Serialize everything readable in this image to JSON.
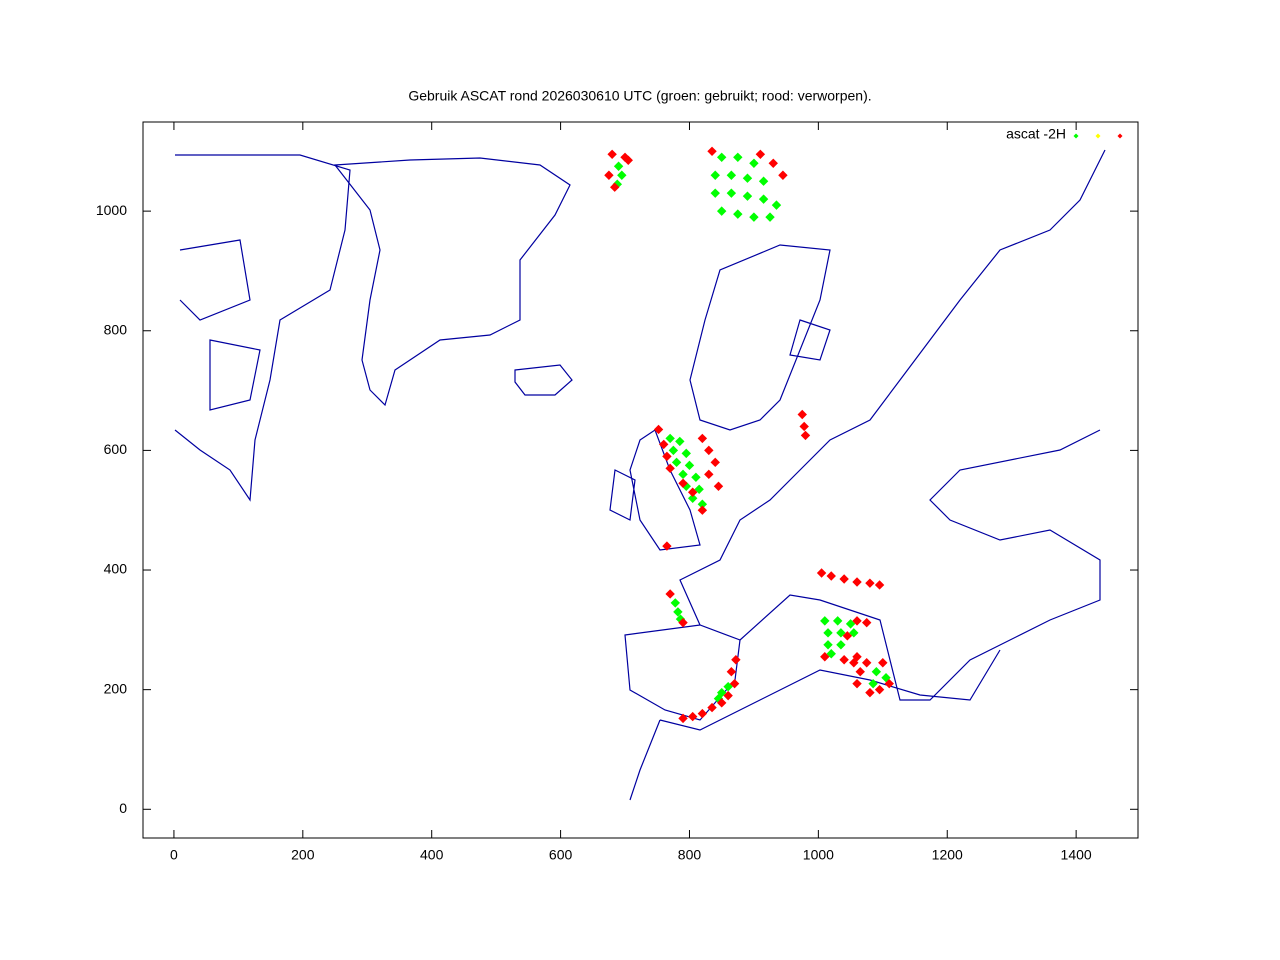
{
  "chart_data": {
    "type": "scatter",
    "title": "Gebruik ASCAT rond 2026030610 UTC (groen: gebruikt; rood: verworpen).",
    "legend_title": "ascat -2H",
    "legend": "top-right",
    "xlim": [
      -48,
      1496
    ],
    "ylim": [
      -48,
      1149
    ],
    "xticks": [
      0,
      200,
      400,
      600,
      800,
      1000,
      1200,
      1400
    ],
    "yticks": [
      0,
      200,
      400,
      600,
      800,
      1000
    ],
    "series": [
      {
        "color": "#00ff00",
        "x": [
          690,
          695,
          688,
          850,
          875,
          900,
          840,
          865,
          890,
          915,
          840,
          865,
          890,
          915,
          935,
          850,
          875,
          900,
          925,
          770,
          785,
          775,
          795,
          780,
          800,
          790,
          810,
          795,
          815,
          805,
          820,
          778,
          782,
          786,
          1010,
          1030,
          1050,
          1015,
          1035,
          1055,
          1015,
          1035,
          1020,
          1090,
          1105,
          1085,
          860,
          850,
          845
        ],
        "values": [
          1075,
          1060,
          1045,
          1090,
          1090,
          1080,
          1060,
          1060,
          1055,
          1050,
          1030,
          1030,
          1025,
          1020,
          1010,
          1000,
          995,
          990,
          990,
          620,
          615,
          600,
          595,
          580,
          575,
          560,
          555,
          540,
          535,
          520,
          510,
          345,
          330,
          318,
          315,
          315,
          310,
          295,
          295,
          295,
          275,
          275,
          260,
          230,
          220,
          210,
          205,
          195,
          185
        ]
      },
      {
        "color": "#ffff00",
        "x": [],
        "values": []
      },
      {
        "color": "#ff0000",
        "x": [
          680,
          700,
          675,
          684,
          705,
          910,
          930,
          945,
          835,
          752,
          760,
          765,
          770,
          790,
          805,
          820,
          830,
          840,
          845,
          830,
          820,
          770,
          790,
          1005,
          1020,
          1040,
          1060,
          1080,
          1095,
          1060,
          1075,
          1045,
          1010,
          1040,
          1060,
          1055,
          1065,
          1075,
          1060,
          1080,
          1100,
          1110,
          1095,
          790,
          805,
          820,
          835,
          850,
          860,
          870,
          865,
          872,
          975,
          978,
          980,
          765
        ],
        "values": [
          1095,
          1090,
          1060,
          1040,
          1085,
          1095,
          1080,
          1060,
          1100,
          635,
          610,
          590,
          570,
          545,
          530,
          500,
          560,
          580,
          540,
          600,
          620,
          360,
          312,
          395,
          390,
          385,
          380,
          378,
          375,
          315,
          312,
          290,
          255,
          250,
          255,
          245,
          230,
          245,
          210,
          195,
          245,
          210,
          200,
          152,
          155,
          160,
          170,
          178,
          190,
          210,
          230,
          250,
          660,
          640,
          625,
          440
        ]
      }
    ]
  }
}
